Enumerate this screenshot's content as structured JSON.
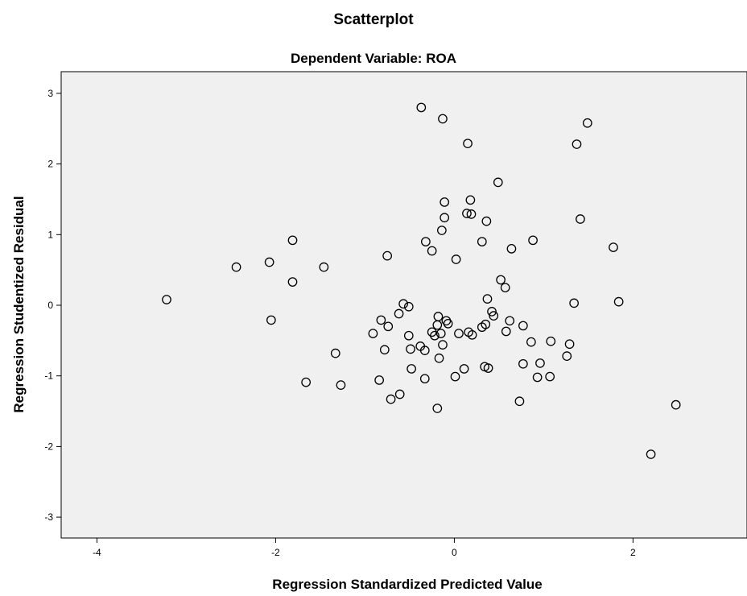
{
  "chart_data": {
    "type": "scatter",
    "title": "Scatterplot",
    "subtitle": "Dependent Variable: ROA",
    "xlabel": "Regression Standardized Predicted Value",
    "ylabel": "Regression Studentized Residual",
    "xlim": [
      -4.4,
      3.3
    ],
    "ylim": [
      -3.3,
      3.3
    ],
    "xticks": [
      -4,
      -2,
      0,
      2
    ],
    "yticks": [
      -3,
      -2,
      -1,
      0,
      1,
      2,
      3
    ],
    "grid": false,
    "background": "#f0f0f0",
    "marker": "open-circle",
    "points": [
      [
        -3.22,
        0.08
      ],
      [
        -2.44,
        0.54
      ],
      [
        -2.07,
        0.61
      ],
      [
        -2.05,
        -0.21
      ],
      [
        -1.81,
        0.92
      ],
      [
        -1.81,
        0.33
      ],
      [
        -1.46,
        0.54
      ],
      [
        -1.66,
        -1.09
      ],
      [
        -1.33,
        -0.68
      ],
      [
        -1.27,
        -1.13
      ],
      [
        -0.37,
        2.8
      ],
      [
        -0.13,
        2.64
      ],
      [
        0.15,
        2.29
      ],
      [
        1.49,
        2.58
      ],
      [
        1.37,
        2.28
      ],
      [
        0.49,
        1.74
      ],
      [
        -0.11,
        1.46
      ],
      [
        0.18,
        1.49
      ],
      [
        -0.11,
        1.24
      ],
      [
        0.14,
        1.3
      ],
      [
        0.19,
        1.29
      ],
      [
        0.36,
        1.19
      ],
      [
        1.41,
        1.22
      ],
      [
        -0.14,
        1.06
      ],
      [
        -0.32,
        0.9
      ],
      [
        -0.25,
        0.77
      ],
      [
        0.31,
        0.9
      ],
      [
        0.88,
        0.92
      ],
      [
        0.64,
        0.8
      ],
      [
        1.78,
        0.82
      ],
      [
        -0.75,
        0.7
      ],
      [
        0.02,
        0.65
      ],
      [
        0.52,
        0.36
      ],
      [
        0.57,
        0.25
      ],
      [
        -0.57,
        0.02
      ],
      [
        -0.51,
        -0.02
      ],
      [
        -0.62,
        -0.12
      ],
      [
        0.37,
        0.09
      ],
      [
        1.34,
        0.03
      ],
      [
        1.84,
        0.05
      ],
      [
        0.42,
        -0.09
      ],
      [
        0.44,
        -0.15
      ],
      [
        -0.82,
        -0.21
      ],
      [
        -0.18,
        -0.16
      ],
      [
        -0.09,
        -0.22
      ],
      [
        -0.74,
        -0.3
      ],
      [
        -0.91,
        -0.4
      ],
      [
        -0.19,
        -0.28
      ],
      [
        -0.07,
        -0.26
      ],
      [
        0.35,
        -0.27
      ],
      [
        0.31,
        -0.31
      ],
      [
        0.62,
        -0.22
      ],
      [
        0.77,
        -0.29
      ],
      [
        -0.51,
        -0.43
      ],
      [
        -0.25,
        -0.38
      ],
      [
        -0.22,
        -0.43
      ],
      [
        -0.15,
        -0.4
      ],
      [
        0.05,
        -0.4
      ],
      [
        0.16,
        -0.38
      ],
      [
        0.2,
        -0.42
      ],
      [
        0.58,
        -0.37
      ],
      [
        0.86,
        -0.52
      ],
      [
        1.08,
        -0.51
      ],
      [
        1.29,
        -0.55
      ],
      [
        -0.78,
        -0.63
      ],
      [
        -0.49,
        -0.62
      ],
      [
        -0.38,
        -0.58
      ],
      [
        -0.33,
        -0.64
      ],
      [
        -0.13,
        -0.56
      ],
      [
        -0.17,
        -0.75
      ],
      [
        1.26,
        -0.72
      ],
      [
        -0.48,
        -0.9
      ],
      [
        -0.33,
        -1.04
      ],
      [
        -0.84,
        -1.06
      ],
      [
        0.01,
        -1.01
      ],
      [
        0.11,
        -0.9
      ],
      [
        0.34,
        -0.87
      ],
      [
        0.38,
        -0.89
      ],
      [
        0.77,
        -0.83
      ],
      [
        0.96,
        -0.82
      ],
      [
        0.93,
        -1.02
      ],
      [
        1.07,
        -1.01
      ],
      [
        -0.61,
        -1.26
      ],
      [
        -0.71,
        -1.33
      ],
      [
        -0.19,
        -1.46
      ],
      [
        0.73,
        -1.36
      ],
      [
        2.48,
        -1.41
      ],
      [
        2.2,
        -2.11
      ]
    ]
  }
}
